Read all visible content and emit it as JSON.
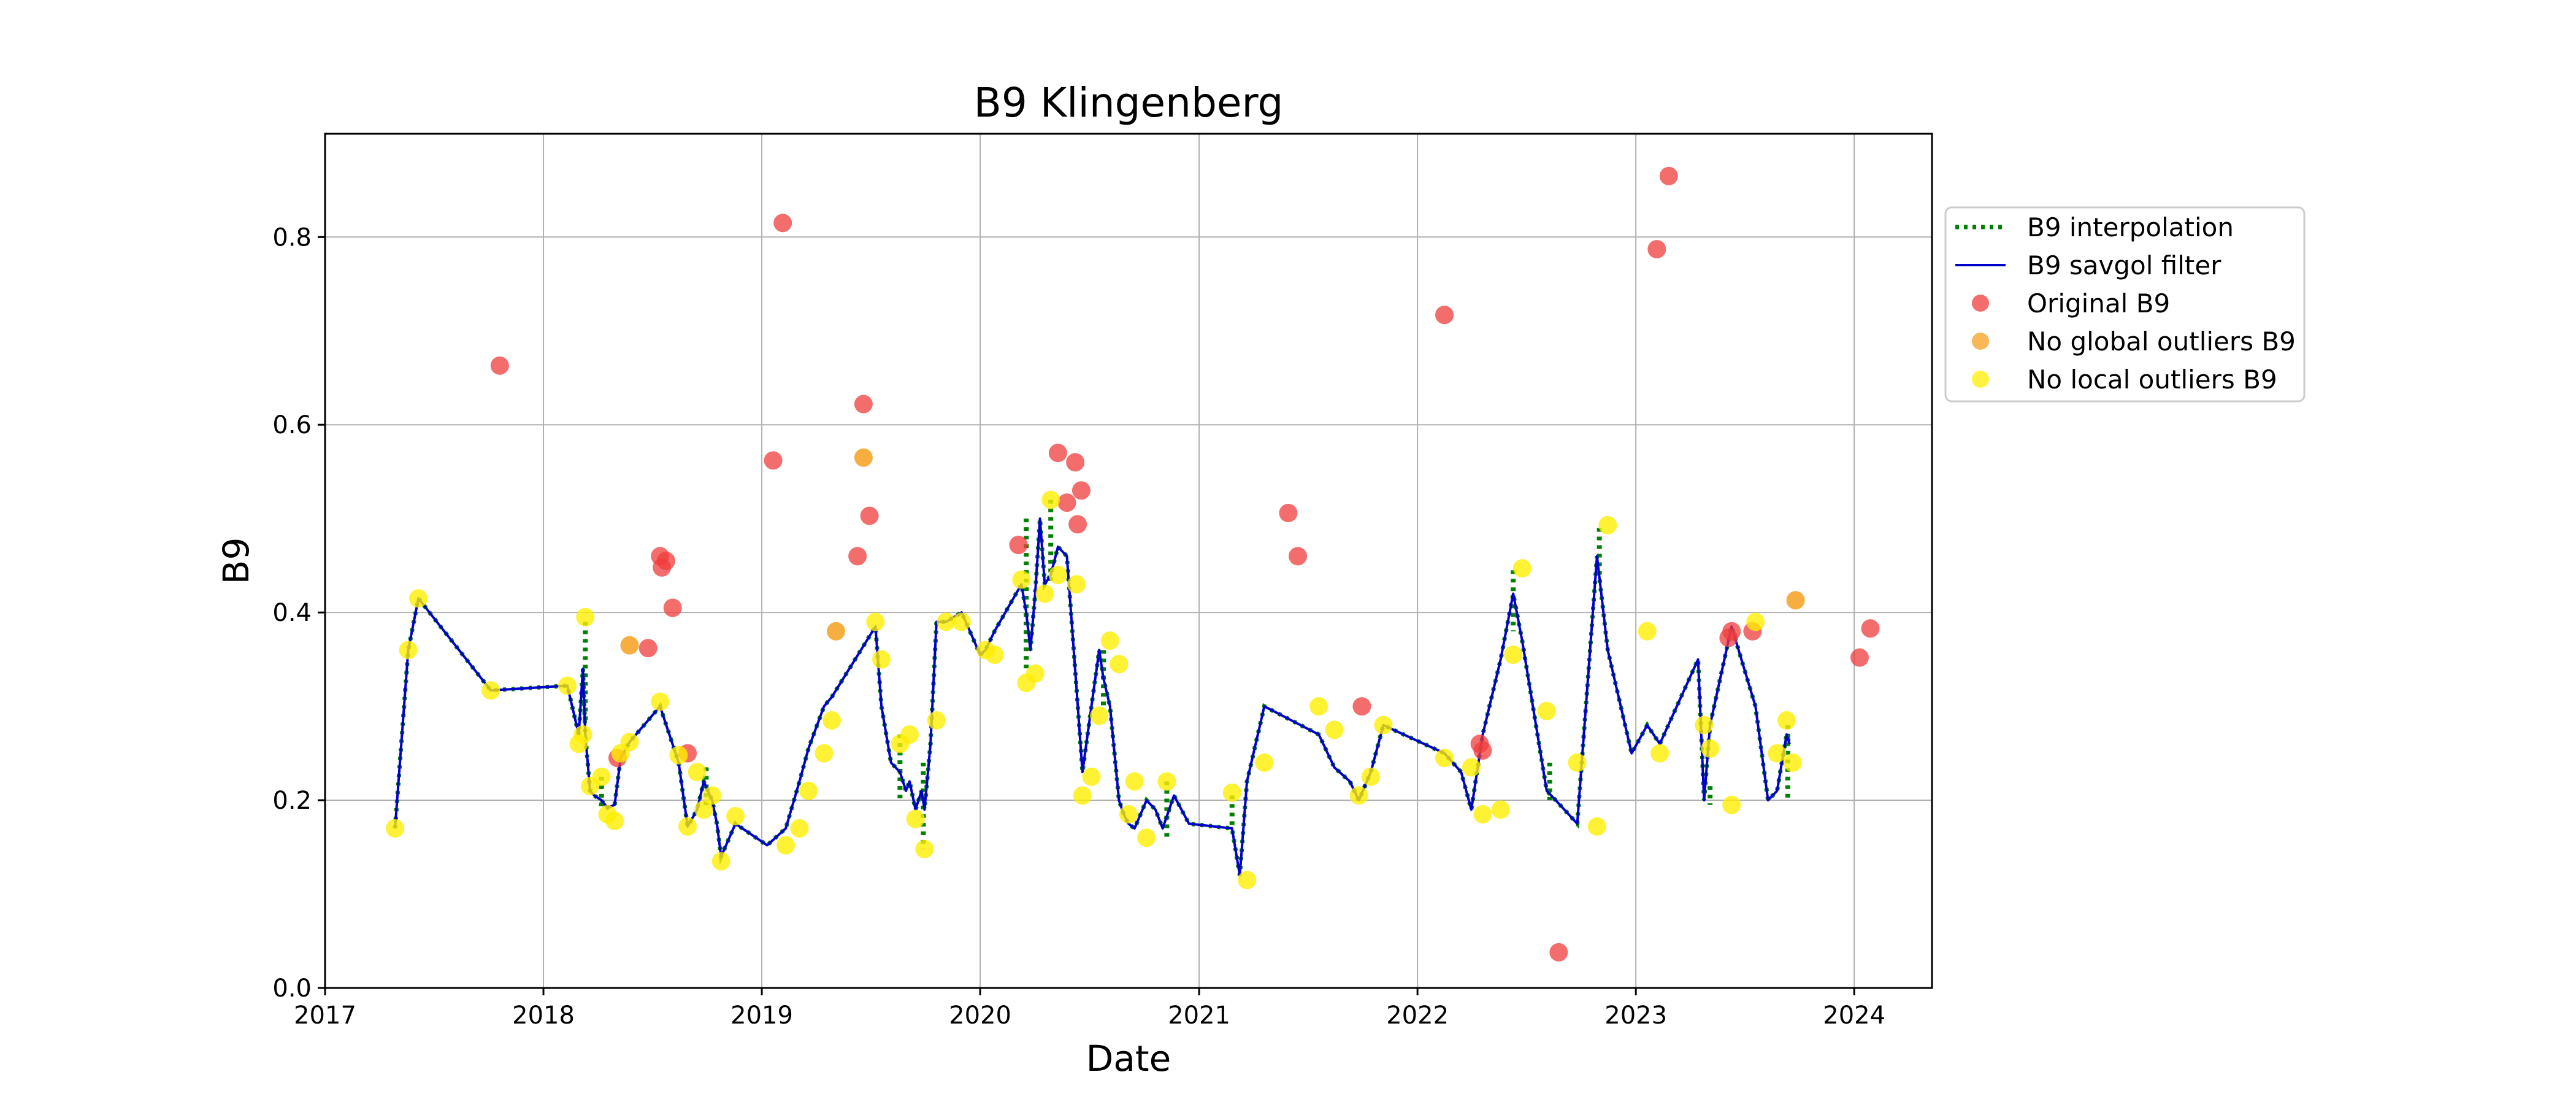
{
  "chart_data": {
    "type": "line",
    "title": "B9 Klingenberg",
    "xlabel": "Date",
    "ylabel": "B9",
    "xlim": [
      "2017-01-01",
      "2024-05-10"
    ],
    "ylim": [
      0.0,
      0.91
    ],
    "grid": true,
    "legend_position": "right-outside",
    "x_ticks": [
      "2017",
      "2018",
      "2019",
      "2020",
      "2021",
      "2022",
      "2023",
      "2024"
    ],
    "y_ticks": [
      "0.0",
      "0.2",
      "0.4",
      "0.6",
      "0.8"
    ],
    "colors": {
      "interpolation": "#008000",
      "savgol": "#0000cd",
      "original": "#f03c3c",
      "global": "#f5a020",
      "local": "#ffee00"
    },
    "legend": [
      {
        "key": "interpolation",
        "label": "B9 interpolation"
      },
      {
        "key": "savgol",
        "label": "B9 savgol filter"
      },
      {
        "key": "original",
        "label": "Original B9"
      },
      {
        "key": "global",
        "label": "No global outliers B9"
      },
      {
        "key": "local",
        "label": "No local outliers B9"
      }
    ],
    "series": [
      {
        "name": "B9 savgol filter",
        "x": [
          "2017-04-28",
          "2017-05-20",
          "2017-06-06",
          "2017-10-05",
          "2018-02-10",
          "2018-03-01",
          "2018-03-08",
          "2018-03-12",
          "2018-03-20",
          "2018-03-27",
          "2018-04-08",
          "2018-04-18",
          "2018-04-30",
          "2018-05-10",
          "2018-05-25",
          "2018-07-15",
          "2018-08-15",
          "2018-08-30",
          "2018-09-15",
          "2018-09-26",
          "2018-10-10",
          "2018-10-18",
          "2018-10-25",
          "2018-11-18",
          "2019-01-10",
          "2019-02-10",
          "2019-03-05",
          "2019-03-20",
          "2019-04-15",
          "2019-04-28",
          "2019-07-10",
          "2019-07-20",
          "2019-08-05",
          "2019-08-20",
          "2019-08-30",
          "2019-09-05",
          "2019-09-15",
          "2019-09-25",
          "2019-09-30",
          "2019-10-10",
          "2019-10-20",
          "2019-11-05",
          "2019-12-01",
          "2020-01-01",
          "2020-01-10",
          "2020-01-25",
          "2020-03-10",
          "2020-03-18",
          "2020-03-25",
          "2020-04-02",
          "2020-04-10",
          "2020-04-18",
          "2020-04-28",
          "2020-05-10",
          "2020-05-25",
          "2020-06-10",
          "2020-06-20",
          "2020-07-05",
          "2020-07-18",
          "2020-07-25",
          "2020-08-05",
          "2020-08-20",
          "2020-08-28",
          "2020-09-05",
          "2020-09-15",
          "2020-10-05",
          "2020-10-20",
          "2020-11-01",
          "2020-11-20",
          "2020-12-15",
          "2021-02-25",
          "2021-03-10",
          "2021-03-22",
          "2021-04-20",
          "2021-07-20",
          "2021-08-15",
          "2021-09-10",
          "2021-09-25",
          "2021-10-15",
          "2021-11-05",
          "2022-02-15",
          "2022-03-15",
          "2022-04-01",
          "2022-04-20",
          "2022-05-20",
          "2022-06-10",
          "2022-06-25",
          "2022-08-05",
          "2022-08-20",
          "2022-09-25",
          "2022-10-28",
          "2022-11-15",
          "2022-12-25",
          "2023-01-20",
          "2023-02-10",
          "2023-04-15",
          "2023-04-25",
          "2023-05-05",
          "2023-06-10",
          "2023-07-20",
          "2023-08-10",
          "2023-08-25",
          "2023-09-10",
          "2023-09-15"
        ],
        "y": [
          0.17,
          0.36,
          0.415,
          0.317,
          0.322,
          0.27,
          0.34,
          0.27,
          0.21,
          0.205,
          0.2,
          0.192,
          0.195,
          0.245,
          0.262,
          0.3,
          0.24,
          0.172,
          0.19,
          0.22,
          0.2,
          0.175,
          0.14,
          0.175,
          0.152,
          0.17,
          0.22,
          0.255,
          0.3,
          0.31,
          0.385,
          0.3,
          0.24,
          0.23,
          0.21,
          0.22,
          0.19,
          0.21,
          0.19,
          0.26,
          0.39,
          0.39,
          0.4,
          0.355,
          0.36,
          0.38,
          0.43,
          0.4,
          0.36,
          0.42,
          0.5,
          0.43,
          0.44,
          0.47,
          0.46,
          0.32,
          0.23,
          0.3,
          0.36,
          0.33,
          0.3,
          0.2,
          0.185,
          0.175,
          0.17,
          0.2,
          0.19,
          0.17,
          0.205,
          0.175,
          0.17,
          0.12,
          0.22,
          0.3,
          0.27,
          0.235,
          0.22,
          0.2,
          0.23,
          0.28,
          0.25,
          0.23,
          0.19,
          0.27,
          0.35,
          0.42,
          0.37,
          0.21,
          0.2,
          0.175,
          0.46,
          0.36,
          0.25,
          0.28,
          0.26,
          0.35,
          0.2,
          0.28,
          0.385,
          0.3,
          0.2,
          0.21,
          0.27,
          0.26
        ]
      },
      {
        "name": "B9 interpolation",
        "segments": [
          {
            "x": [
              "2018-03-12",
              "2018-03-12"
            ],
            "y": [
              0.39,
              0.28
            ]
          },
          {
            "x": [
              "2018-04-08",
              "2018-04-08"
            ],
            "y": [
              0.225,
              0.19
            ]
          },
          {
            "x": [
              "2018-09-30",
              "2018-09-30"
            ],
            "y": [
              0.235,
              0.195
            ]
          },
          {
            "x": [
              "2019-08-20",
              "2019-08-20"
            ],
            "y": [
              0.27,
              0.2
            ]
          },
          {
            "x": [
              "2019-09-28",
              "2019-09-28"
            ],
            "y": [
              0.24,
              0.148
            ]
          },
          {
            "x": [
              "2020-03-18",
              "2020-03-18"
            ],
            "y": [
              0.5,
              0.34
            ]
          },
          {
            "x": [
              "2020-04-28",
              "2020-04-28"
            ],
            "y": [
              0.52,
              0.43
            ]
          },
          {
            "x": [
              "2020-07-25",
              "2020-07-25"
            ],
            "y": [
              0.36,
              0.3
            ]
          },
          {
            "x": [
              "2020-11-08",
              "2020-11-08"
            ],
            "y": [
              0.22,
              0.16
            ]
          },
          {
            "x": [
              "2021-02-25",
              "2021-02-25"
            ],
            "y": [
              0.205,
              0.17
            ]
          },
          {
            "x": [
              "2022-06-10",
              "2022-06-10"
            ],
            "y": [
              0.445,
              0.38
            ]
          },
          {
            "x": [
              "2022-08-10",
              "2022-08-10"
            ],
            "y": [
              0.24,
              0.2
            ]
          },
          {
            "x": [
              "2022-11-01",
              "2022-11-01"
            ],
            "y": [
              0.49,
              0.44
            ]
          },
          {
            "x": [
              "2023-05-05",
              "2023-05-05"
            ],
            "y": [
              0.215,
              0.195
            ]
          },
          {
            "x": [
              "2023-09-12",
              "2023-09-12"
            ],
            "y": [
              0.28,
              0.2
            ]
          }
        ]
      },
      {
        "name": "Original B9",
        "x": [
          "2017-10-20",
          "2018-05-05",
          "2018-06-25",
          "2018-07-15",
          "2018-07-18",
          "2018-07-25",
          "2018-08-05",
          "2018-08-30",
          "2019-01-20",
          "2019-02-05",
          "2019-06-10",
          "2019-06-20",
          "2019-06-30",
          "2020-03-05",
          "2020-05-10",
          "2020-05-25",
          "2020-06-08",
          "2020-06-12",
          "2020-06-18",
          "2021-05-30",
          "2021-06-15",
          "2021-09-30",
          "2022-02-15",
          "2022-04-15",
          "2022-04-20",
          "2022-08-25",
          "2023-02-05",
          "2023-02-25",
          "2023-06-05",
          "2023-06-10",
          "2023-07-15",
          "2024-01-10",
          "2024-01-28"
        ],
        "y": [
          0.663,
          0.245,
          0.362,
          0.46,
          0.448,
          0.455,
          0.405,
          0.25,
          0.562,
          0.815,
          0.46,
          0.622,
          0.503,
          0.472,
          0.57,
          0.517,
          0.56,
          0.494,
          0.53,
          0.506,
          0.46,
          0.3,
          0.717,
          0.26,
          0.253,
          0.038,
          0.787,
          0.865,
          0.373,
          0.38,
          0.38,
          0.352,
          0.383
        ]
      },
      {
        "name": "No global outliers B9",
        "x": [
          "2018-05-25",
          "2019-05-05",
          "2019-06-20",
          "2023-09-25"
        ],
        "y": [
          0.365,
          0.38,
          0.565,
          0.413
        ]
      },
      {
        "name": "No local outliers B9",
        "x": [
          "2017-04-28",
          "2017-05-20",
          "2017-06-06",
          "2017-10-05",
          "2018-02-10",
          "2018-03-01",
          "2018-03-08",
          "2018-03-12",
          "2018-03-20",
          "2018-04-08",
          "2018-04-18",
          "2018-04-30",
          "2018-05-10",
          "2018-05-25",
          "2018-07-15",
          "2018-08-15",
          "2018-08-30",
          "2018-09-15",
          "2018-09-26",
          "2018-10-10",
          "2018-10-25",
          "2018-11-18",
          "2019-02-10",
          "2019-03-05",
          "2019-03-20",
          "2019-04-15",
          "2019-04-28",
          "2019-07-10",
          "2019-07-20",
          "2019-08-20",
          "2019-09-05",
          "2019-09-15",
          "2019-09-30",
          "2019-10-20",
          "2019-11-05",
          "2019-12-01",
          "2020-01-10",
          "2020-01-25",
          "2020-03-10",
          "2020-03-18",
          "2020-04-02",
          "2020-04-18",
          "2020-04-28",
          "2020-05-10",
          "2020-06-10",
          "2020-06-20",
          "2020-07-05",
          "2020-07-18",
          "2020-08-05",
          "2020-08-20",
          "2020-09-05",
          "2020-09-15",
          "2020-10-05",
          "2020-11-08",
          "2021-02-25",
          "2021-03-22",
          "2021-04-20",
          "2021-07-20",
          "2021-08-15",
          "2021-09-25",
          "2021-10-15",
          "2021-11-05",
          "2022-02-15",
          "2022-04-01",
          "2022-04-20",
          "2022-05-20",
          "2022-06-10",
          "2022-06-25",
          "2022-08-05",
          "2022-09-25",
          "2022-10-28",
          "2022-11-15",
          "2023-01-20",
          "2023-02-10",
          "2023-04-25",
          "2023-05-05",
          "2023-06-10",
          "2023-07-20",
          "2023-08-25",
          "2023-09-10",
          "2023-09-20"
        ],
        "y": [
          0.17,
          0.36,
          0.415,
          0.317,
          0.322,
          0.26,
          0.27,
          0.395,
          0.215,
          0.225,
          0.185,
          0.178,
          0.25,
          0.262,
          0.305,
          0.248,
          0.172,
          0.23,
          0.19,
          0.205,
          0.135,
          0.183,
          0.152,
          0.17,
          0.21,
          0.25,
          0.285,
          0.39,
          0.35,
          0.26,
          0.27,
          0.18,
          0.148,
          0.285,
          0.39,
          0.39,
          0.36,
          0.355,
          0.435,
          0.325,
          0.335,
          0.42,
          0.52,
          0.44,
          0.43,
          0.205,
          0.225,
          0.29,
          0.37,
          0.345,
          0.185,
          0.22,
          0.16,
          0.22,
          0.208,
          0.115,
          0.24,
          0.3,
          0.275,
          0.205,
          0.225,
          0.28,
          0.245,
          0.235,
          0.185,
          0.19,
          0.355,
          0.447,
          0.295,
          0.24,
          0.172,
          0.493,
          0.38,
          0.25,
          0.28,
          0.255,
          0.195,
          0.39,
          0.25,
          0.285,
          0.24
        ]
      }
    ]
  }
}
